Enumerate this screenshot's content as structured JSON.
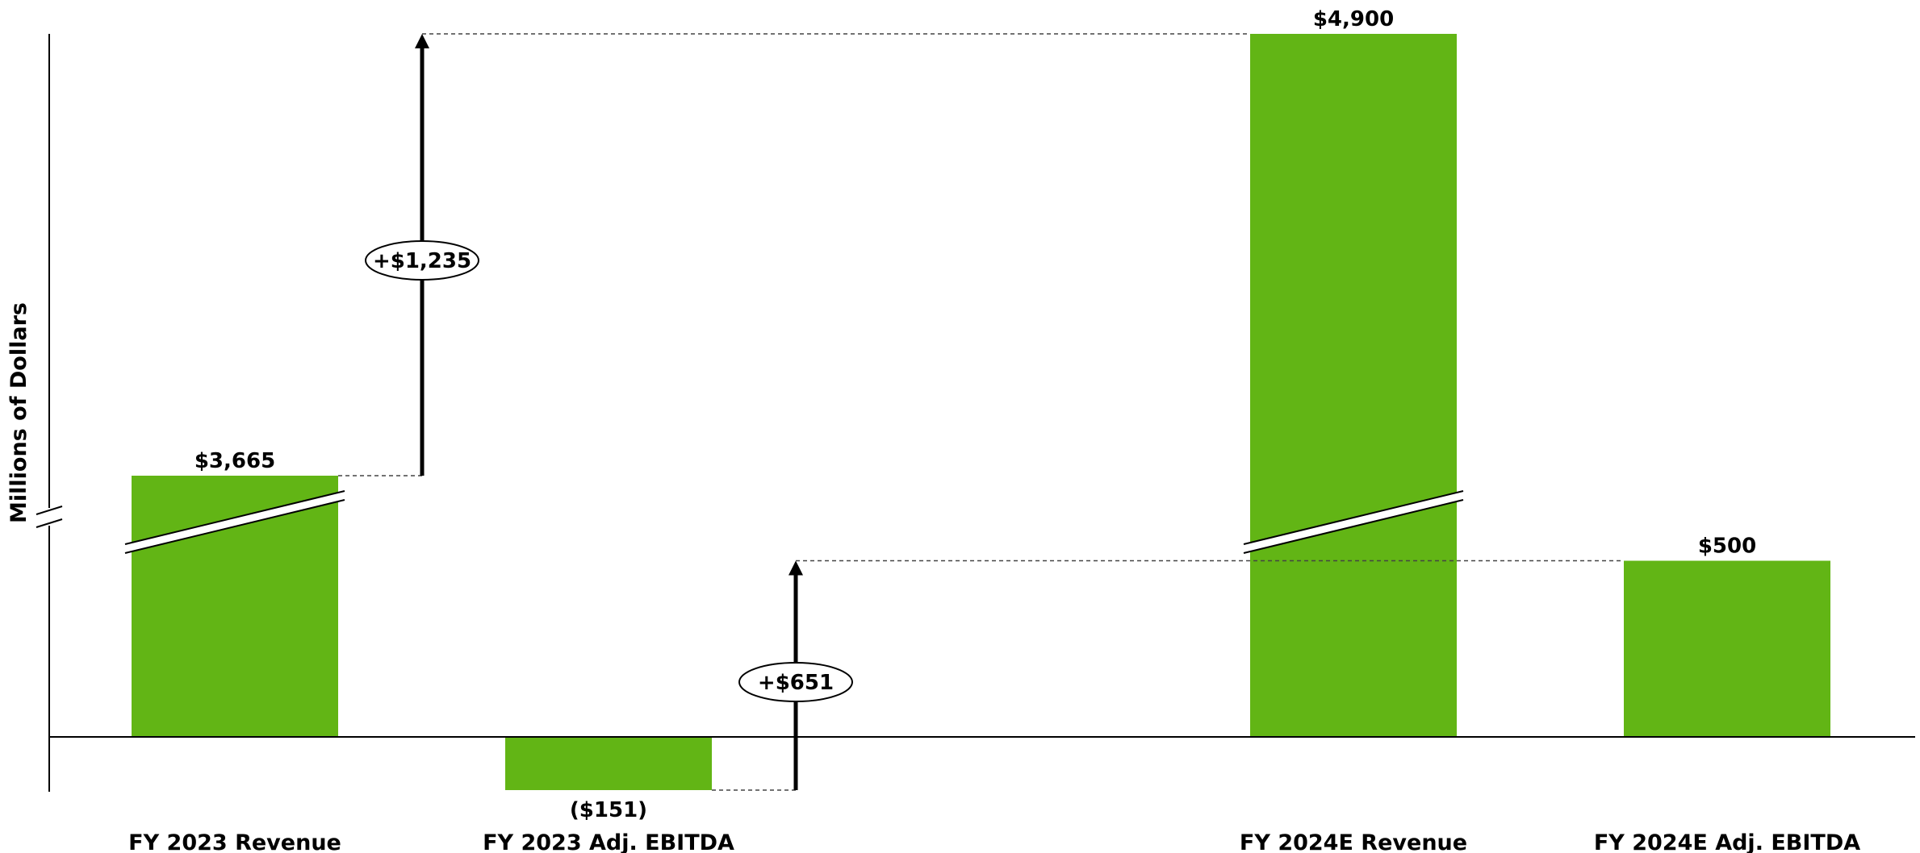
{
  "chart_data": {
    "type": "bar",
    "subtype": "waterfall-with-axis-break",
    "ylabel": "Millions of Dollars",
    "categories": [
      "FY 2023 Revenue",
      "FY 2023 Adj. EBITDA",
      "FY 2024E Revenue",
      "FY 2024E Adj. EBITDA"
    ],
    "values": [
      3665,
      -151,
      4900,
      500
    ],
    "value_labels": [
      "$3,665",
      "($151)",
      "$4,900",
      "$500"
    ],
    "axis_break": true,
    "bar_color": "#62B515",
    "changes": [
      {
        "from": "FY 2023 Revenue",
        "to": "FY 2024E Revenue",
        "value": 1235,
        "label": "+$1,235"
      },
      {
        "from": "FY 2023 Adj. EBITDA",
        "to": "FY 2024E Adj. EBITDA",
        "value": 651,
        "label": "+$651"
      }
    ]
  }
}
